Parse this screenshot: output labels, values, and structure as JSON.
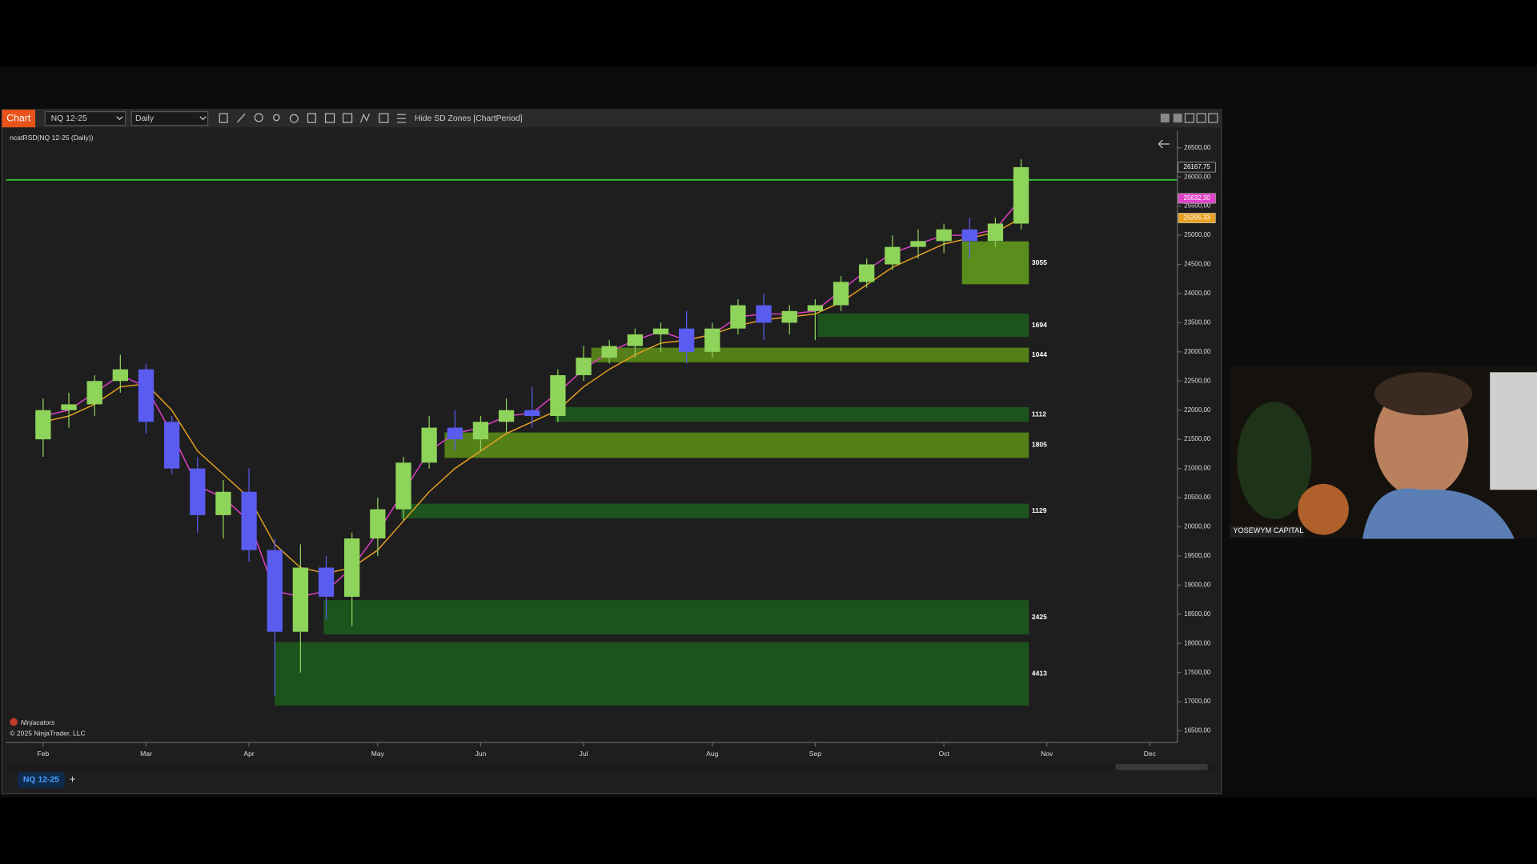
{
  "toolbar": {
    "app": "Chart",
    "instrument": "NQ 12-25",
    "period": "Daily",
    "command": "Hide SD Zones [ChartPeriod]"
  },
  "indicator_label": "ncatRSD(NQ 12-25 (Daily))",
  "watermark": "Ninjacators",
  "copyright": "© 2025 NinjaTrader, LLC",
  "tabs": [
    "NQ 12-25",
    "+"
  ],
  "webcam": {
    "caption": "YOSEWYM CAPITAL"
  },
  "chart_data": {
    "type": "candlestick",
    "categories": [
      "Feb",
      null,
      null,
      null,
      "Mar",
      null,
      null,
      null,
      "Apr",
      null,
      null,
      null,
      null,
      "May",
      null,
      null,
      null,
      "Jun",
      null,
      null,
      null,
      "Jul",
      null,
      null,
      null,
      null,
      "Aug",
      null,
      null,
      null,
      "Sep",
      null,
      null,
      null,
      null,
      "Oct",
      null,
      null,
      null,
      "Nov",
      null,
      null,
      null,
      "Dec"
    ],
    "up_color": "#8fd45a",
    "down_color": "#5a5cf0",
    "open": [
      21500,
      22000,
      22100,
      22500,
      22700,
      21800,
      21000,
      20200,
      20600,
      19600,
      18200,
      19300,
      18800,
      19800,
      20300,
      21100,
      21700,
      21500,
      21800,
      22000,
      21900,
      22600,
      22900,
      23100,
      23300,
      23400,
      23000,
      23400,
      23800,
      23500,
      23700,
      23800,
      24200,
      24500,
      24800,
      24900,
      25100,
      24900,
      25200,
      null,
      null,
      null,
      null,
      null
    ],
    "high": [
      22200,
      22300,
      22600,
      22950,
      22800,
      21900,
      21200,
      20800,
      21000,
      19800,
      19700,
      19500,
      19900,
      20500,
      21200,
      21900,
      22000,
      21900,
      22200,
      22400,
      22700,
      23100,
      23200,
      23400,
      23500,
      23700,
      23500,
      23900,
      24000,
      23800,
      23900,
      24300,
      24600,
      25000,
      25100,
      25200,
      25300,
      25300,
      26300,
      null,
      null,
      null,
      null,
      null
    ],
    "low": [
      21200,
      21700,
      21900,
      22300,
      21600,
      20900,
      19900,
      19800,
      19400,
      17100,
      17500,
      18400,
      18300,
      19500,
      20100,
      21000,
      21300,
      21300,
      21600,
      21700,
      21800,
      22500,
      22800,
      22900,
      23000,
      22800,
      22900,
      23300,
      23200,
      23300,
      23200,
      23700,
      24100,
      24400,
      24600,
      24700,
      24600,
      24800,
      25100,
      null,
      null,
      null,
      null,
      null
    ],
    "close": [
      22000,
      22100,
      22500,
      22700,
      21800,
      21000,
      20200,
      20600,
      19600,
      18200,
      19300,
      18800,
      19800,
      20300,
      21100,
      21700,
      21500,
      21800,
      22000,
      21900,
      22600,
      22900,
      23100,
      23300,
      23400,
      23000,
      23400,
      23800,
      23500,
      23700,
      23800,
      24200,
      24500,
      24800,
      24900,
      25100,
      24900,
      25200,
      26167.75,
      null,
      null,
      null,
      null,
      null
    ],
    "series": [
      {
        "color": "#e040c8",
        "values": [
          21900,
          22000,
          22300,
          22600,
          22400,
          21600,
          20700,
          20500,
          20100,
          18900,
          18800,
          18900,
          19300,
          19900,
          20600,
          21300,
          21600,
          21700,
          21900,
          21950,
          22300,
          22700,
          23000,
          23200,
          23350,
          23200,
          23300,
          23600,
          23650,
          23650,
          23700,
          24050,
          24400,
          24700,
          24850,
          25000,
          25000,
          25100,
          25632.3,
          null,
          null,
          null,
          null,
          null
        ]
      },
      {
        "color": "#e8a020",
        "values": [
          21800,
          21900,
          22100,
          22400,
          22450,
          22000,
          21300,
          20900,
          20500,
          19700,
          19300,
          19200,
          19300,
          19600,
          20100,
          20600,
          21000,
          21300,
          21600,
          21800,
          22000,
          22400,
          22700,
          22950,
          23150,
          23200,
          23300,
          23450,
          23550,
          23600,
          23650,
          23850,
          24150,
          24450,
          24650,
          24850,
          24950,
          25050,
          25295.33,
          null,
          null,
          null,
          null,
          null
        ]
      }
    ],
    "price_markers": [
      {
        "value": 26167.75,
        "label": "26167,75",
        "color": "#1e1e1e"
      },
      {
        "value": 25632.3,
        "label": "25632,30",
        "color": "#e040c8"
      },
      {
        "value": 25295.33,
        "label": "25295,33",
        "color": "#e8a020"
      }
    ],
    "level_line": {
      "value": 25950,
      "color": "#2fbf2f"
    },
    "zones": [
      {
        "label": "3055",
        "top": 24895,
        "bottom": 24159,
        "start": 35.7,
        "end": 38.3,
        "color": "#5f9a1c"
      },
      {
        "label": "1694",
        "top": 23657,
        "bottom": 23256,
        "start": 30.1,
        "end": 38.3,
        "color": "#1d5a1d"
      },
      {
        "label": "1044",
        "top": 23072,
        "bottom": 22821,
        "start": 21.3,
        "end": 38.3,
        "color": "#5a8a18"
      },
      {
        "label": "1112",
        "top": 22052,
        "bottom": 21801,
        "start": 19.9,
        "end": 38.3,
        "color": "#1d5a1d"
      },
      {
        "label": "1805",
        "top": 21617,
        "bottom": 21182,
        "start": 15.6,
        "end": 38.3,
        "color": "#5a8a18"
      },
      {
        "label": "1129",
        "top": 20396,
        "bottom": 20145,
        "start": 13.9,
        "end": 38.3,
        "color": "#1d5a1d"
      },
      {
        "label": "2425",
        "top": 18741,
        "bottom": 18155,
        "start": 10.9,
        "end": 38.3,
        "color": "#1d5a1d"
      },
      {
        "label": "4413",
        "top": 18022,
        "bottom": 16935,
        "start": 9.0,
        "end": 38.3,
        "color": "#1d5a1d"
      }
    ],
    "ylim": [
      16300,
      26800
    ],
    "yticks": [
      {
        "value": 16500,
        "label": "16500,00"
      },
      {
        "value": 17000,
        "label": "17000,00"
      },
      {
        "value": 17500,
        "label": "17500,00"
      },
      {
        "value": 18000,
        "label": "18000,00"
      },
      {
        "value": 18500,
        "label": "18500,00"
      },
      {
        "value": 19000,
        "label": "19000,00"
      },
      {
        "value": 19500,
        "label": "19500,00"
      },
      {
        "value": 20000,
        "label": "20000,00"
      },
      {
        "value": 20500,
        "label": "20500,00"
      },
      {
        "value": 21000,
        "label": "21000,00"
      },
      {
        "value": 21500,
        "label": "21500,00"
      },
      {
        "value": 22000,
        "label": "22000,00"
      },
      {
        "value": 22500,
        "label": "22500,00"
      },
      {
        "value": 23000,
        "label": "23000,00"
      },
      {
        "value": 23500,
        "label": "23500,00"
      },
      {
        "value": 24000,
        "label": "24000,00"
      },
      {
        "value": 24500,
        "label": "24500,00"
      },
      {
        "value": 25000,
        "label": "25000,00"
      },
      {
        "value": 25500,
        "label": "25500,00"
      },
      {
        "value": 26000,
        "label": "26000,00"
      },
      {
        "value": 26500,
        "label": "26500,00"
      }
    ]
  }
}
